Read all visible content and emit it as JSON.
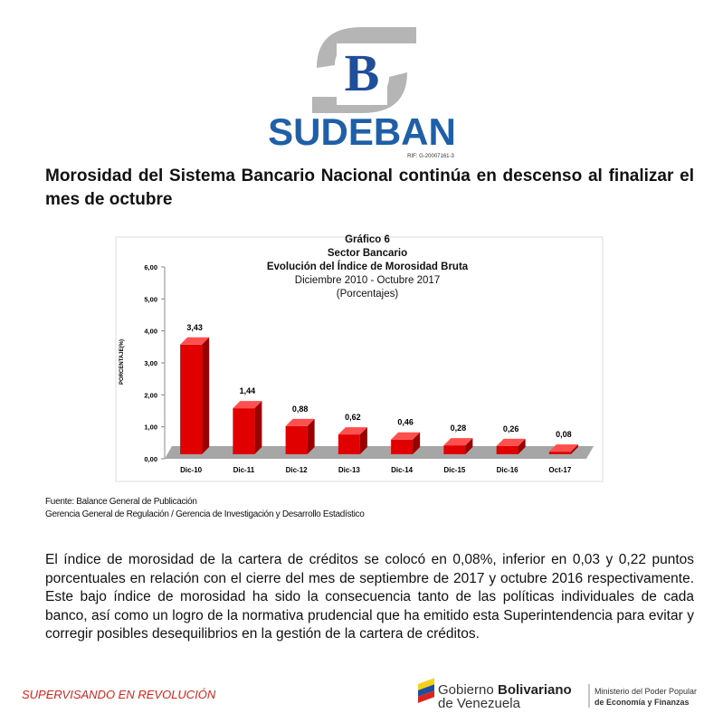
{
  "header": {
    "logo_letter": "B",
    "brand": "SUDEBAN",
    "rif": "RIF: G-20007161-3"
  },
  "headline": "Morosidad del Sistema Bancario Nacional continúa en descenso al finalizar el mes de octubre",
  "chart_data": {
    "type": "bar",
    "title_lines": [
      "Gráfico 6",
      "Sector Bancario",
      "Evolución del Índice de Morosidad Bruta",
      "Diciembre 2010 - Octubre 2017",
      "(Porcentajes)"
    ],
    "y_label": "PORCENTAJE(%)",
    "categories": [
      "Dic-10",
      "Dic-11",
      "Dic-12",
      "Dic-13",
      "Dic-14",
      "Dic-15",
      "Dic-16",
      "Oct-17"
    ],
    "values": [
      3.43,
      1.44,
      0.88,
      0.62,
      0.46,
      0.28,
      0.26,
      0.08
    ],
    "value_labels": [
      "3,43",
      "1,44",
      "0,88",
      "0,62",
      "0,46",
      "0,28",
      "0,26",
      "0,08"
    ],
    "color": "#e00000",
    "ylim": [
      0,
      6
    ],
    "yticks": [
      {
        "value": 0,
        "label": "0,00"
      },
      {
        "value": 1,
        "label": "1,00"
      },
      {
        "value": 2,
        "label": "2,00"
      },
      {
        "value": 3,
        "label": "3,00"
      },
      {
        "value": 4,
        "label": "4,00"
      },
      {
        "value": 5,
        "label": "5,00"
      },
      {
        "value": 6,
        "label": "6,00"
      }
    ]
  },
  "source": [
    "Fuente: Balance General de Publicación",
    "Gerencia General de Regulación / Gerencia de Investigación y Desarrollo Estadístico"
  ],
  "body": "El índice de morosidad de la cartera de créditos se colocó en 0,08%, inferior en 0,03 y 0,22 puntos porcentuales en relación con el cierre del mes de septiembre de 2017 y octubre 2016 respectivamente. Este bajo índice de morosidad ha sido la consecuencia tanto de las políticas individuales de cada banco, así como un logro de la normativa prudencial que ha emitido esta Superintendencia para evitar y corregir posibles desequilibrios en la gestión de la cartera de créditos.",
  "footer": {
    "slogan": "SUPERVISANDO EN REVOLUCIÓN",
    "gov_1": "Gobierno",
    "gov_2": "Bolivariano",
    "gov_3": "de Venezuela",
    "ministry_1": "Ministerio del Poder Popular",
    "ministry_2": "de Economía y Finanzas"
  }
}
